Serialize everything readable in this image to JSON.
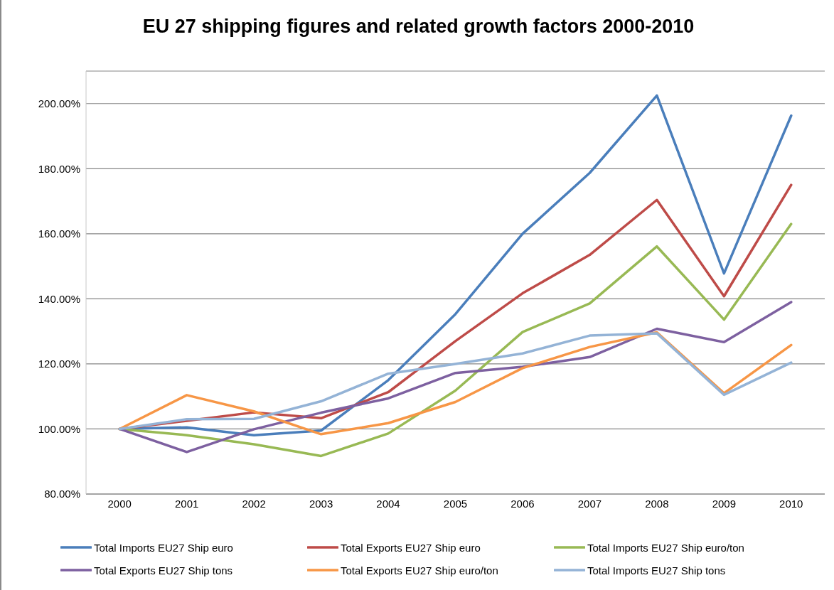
{
  "chart_data": {
    "type": "line",
    "title": "EU 27 shipping figures and related growth factors 2000-2010",
    "categories": [
      "2000",
      "2001",
      "2002",
      "2003",
      "2004",
      "2005",
      "2006",
      "2007",
      "2008",
      "2009",
      "2010"
    ],
    "series": [
      {
        "name": "Total Imports EU27 Ship euro",
        "color": "#4a7ebb",
        "values": [
          100,
          100.5,
          98.1,
          99.5,
          115,
          135.3,
          160,
          178.7,
          202.5,
          147.8,
          196.3
        ]
      },
      {
        "name": "Total Exports EU27 Ship euro",
        "color": "#be4b48",
        "values": [
          100,
          102.5,
          105.1,
          103.3,
          111.3,
          127,
          141.7,
          153.5,
          170.4,
          140.8,
          175
        ]
      },
      {
        "name": "Total Imports EU27 Ship euro/ton",
        "color": "#98b954",
        "values": [
          100,
          98.1,
          95.3,
          91.7,
          98.6,
          111.8,
          129.8,
          138.6,
          156.1,
          133.6,
          163
        ]
      },
      {
        "name": "Total Exports EU27 Ship tons",
        "color": "#7d60a0",
        "values": [
          100,
          92.9,
          99.9,
          105,
          109.4,
          117.2,
          119.1,
          122.1,
          130.8,
          126.7,
          139
        ]
      },
      {
        "name": "Total Exports EU27 Ship euro/ton",
        "color": "#f79646",
        "values": [
          100,
          110.4,
          105.4,
          98.4,
          101.8,
          108.3,
          118.7,
          125.2,
          129.7,
          111,
          125.8
        ]
      },
      {
        "name": "Total Imports EU27 Ship tons",
        "color": "#94b3d6",
        "values": [
          100,
          103,
          103.1,
          108.5,
          117,
          120,
          123.2,
          128.7,
          129.4,
          110.5,
          120.4
        ]
      }
    ],
    "ylim": [
      80,
      210
    ],
    "yticks": [
      {
        "value": 80,
        "label": "80.00%"
      },
      {
        "value": 100,
        "label": "100.00%"
      },
      {
        "value": 120,
        "label": "120.00%"
      },
      {
        "value": 140,
        "label": "140.00%"
      },
      {
        "value": 160,
        "label": "160.00%"
      },
      {
        "value": 180,
        "label": "180.00%"
      },
      {
        "value": 200,
        "label": "200.00%"
      }
    ],
    "grid": "y",
    "legend": "bottom"
  }
}
